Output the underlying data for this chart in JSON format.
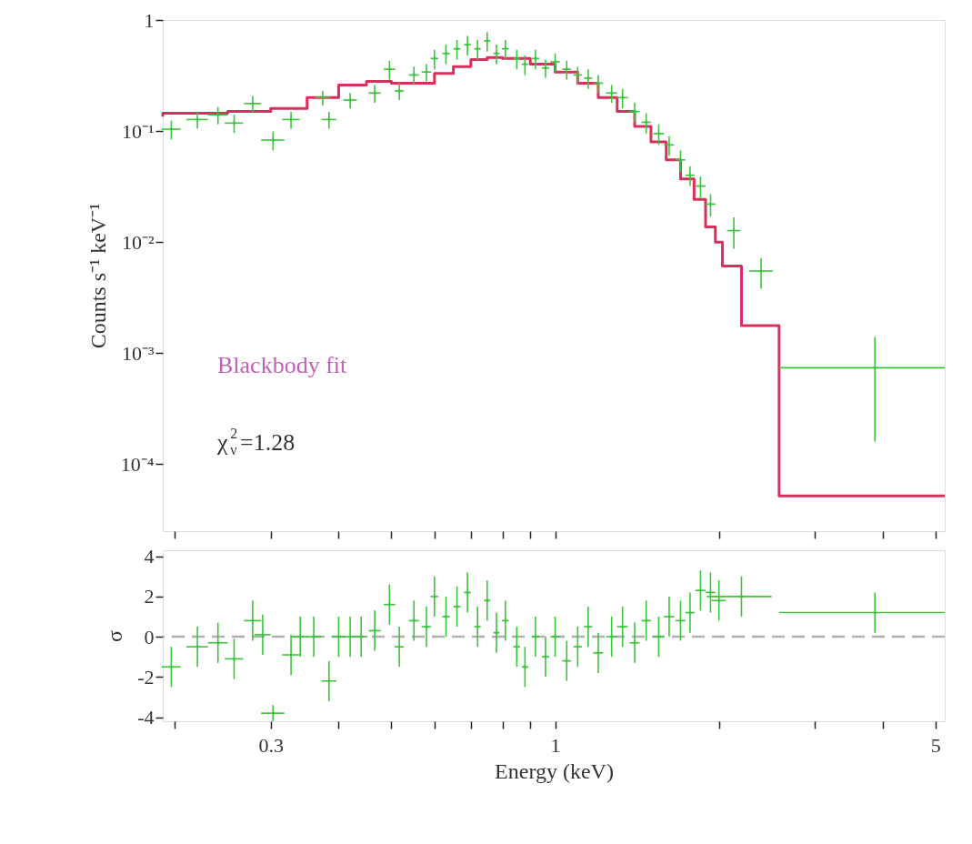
{
  "chart_data": [
    {
      "type": "scatter",
      "ylabel": "Counts s⁻¹ keV⁻¹",
      "log": "xy",
      "xlim": [
        0.19,
        5.2
      ],
      "ylim": [
        2.5e-05,
        1
      ],
      "xticks": [
        {
          "value": 0.2,
          "label": null
        },
        {
          "value": 0.3,
          "label": null
        },
        {
          "value": 0.4,
          "label": null
        },
        {
          "value": 0.5,
          "label": null
        },
        {
          "value": 0.6,
          "label": null
        },
        {
          "value": 0.7,
          "label": null
        },
        {
          "value": 0.8,
          "label": null
        },
        {
          "value": 0.9,
          "label": null
        },
        {
          "value": 1,
          "label": null
        },
        {
          "value": 2,
          "label": null
        },
        {
          "value": 3,
          "label": null
        },
        {
          "value": 4,
          "label": null
        },
        {
          "value": 5,
          "label": null
        }
      ],
      "yticks": [
        1,
        {
          "value": 0.1,
          "label": "10⁻¹"
        },
        {
          "value": 0.01,
          "label": "10⁻²"
        },
        {
          "value": 0.001,
          "label": "10⁻³"
        },
        {
          "value": 0.0001,
          "label": "10⁻⁴"
        }
      ],
      "tick_labels": "y",
      "grid": false,
      "annotations": [
        "Blackbody fit",
        "χ$_{ν}$$^{2}$=1.28"
      ],
      "series": [
        {
          "color": "#3cc43c",
          "marker": "cross",
          "x": [
            0.197,
            0.22,
            0.24,
            0.257,
            0.278,
            0.303,
            0.327,
            0.374,
            0.384,
            0.42,
            0.466,
            0.496,
            0.517,
            0.55,
            0.58,
            0.6,
            0.63,
            0.66,
            0.69,
            0.72,
            0.75,
            0.78,
            0.81,
            0.85,
            0.88,
            0.92,
            0.96,
            1.0,
            1.05,
            1.1,
            1.15,
            1.2,
            1.27,
            1.33,
            1.4,
            1.47,
            1.55,
            1.62,
            1.7,
            1.77,
            1.85,
            1.93,
            2.13,
            2.39,
            3.87
          ],
          "values": [
            0.104,
            0.127,
            0.14,
            0.118,
            0.177,
            0.083,
            0.127,
            0.2,
            0.127,
            0.19,
            0.22,
            0.36,
            0.23,
            0.32,
            0.34,
            0.45,
            0.5,
            0.55,
            0.6,
            0.55,
            0.65,
            0.5,
            0.55,
            0.45,
            0.4,
            0.45,
            0.37,
            0.42,
            0.36,
            0.32,
            0.3,
            0.27,
            0.22,
            0.2,
            0.15,
            0.12,
            0.095,
            0.075,
            0.055,
            0.04,
            0.032,
            0.022,
            0.0127,
            0.0055,
            0.00074
          ],
          "errors": [
            0.02,
            0.022,
            0.025,
            0.022,
            0.03,
            0.016,
            0.022,
            0.03,
            0.022,
            0.03,
            0.04,
            0.07,
            0.04,
            0.06,
            0.06,
            0.09,
            0.1,
            0.11,
            0.12,
            0.11,
            0.13,
            0.1,
            0.11,
            0.09,
            0.08,
            0.09,
            0.07,
            0.08,
            0.07,
            0.06,
            0.06,
            0.05,
            0.04,
            0.04,
            0.03,
            0.025,
            0.02,
            0.015,
            0.012,
            0.008,
            0.007,
            0.005,
            0.004,
            0.0017,
            [
              0.00016,
              0.0014
            ]
          ],
          "xerrors": [
            0.008,
            0.01,
            0.01,
            0.01,
            0.01,
            0.015,
            0.012,
            0.012,
            0.012,
            0.012,
            0.012,
            0.012,
            0.01,
            0.012,
            0.012,
            0.01,
            0.01,
            0.01,
            0.01,
            0.01,
            0.01,
            0.01,
            0.012,
            0.012,
            0.012,
            0.015,
            0.015,
            0.02,
            0.02,
            0.02,
            0.02,
            0.025,
            0.03,
            0.03,
            0.03,
            0.03,
            0.035,
            0.035,
            0.035,
            0.035,
            0.04,
            0.04,
            0.06,
            0.12,
            [
              2.58,
              5.2
            ]
          ]
        },
        {
          "type": "step",
          "color": "#d8305c",
          "x": [
            0.19,
            0.25,
            0.3,
            0.35,
            0.4,
            0.45,
            0.5,
            0.55,
            0.6,
            0.65,
            0.7,
            0.75,
            0.8,
            0.9,
            1.0,
            1.1,
            1.2,
            1.3,
            1.4,
            1.5,
            1.6,
            1.7,
            1.8,
            1.89,
            1.97,
            2.03,
            2.2,
            2.58,
            5.2
          ],
          "values": [
            0.135,
            0.145,
            0.15,
            0.16,
            0.2,
            0.26,
            0.28,
            0.27,
            0.27,
            0.33,
            0.38,
            0.44,
            0.46,
            0.45,
            0.4,
            0.34,
            0.27,
            0.2,
            0.15,
            0.11,
            0.08,
            0.055,
            0.037,
            0.0242,
            0.0137,
            0.01,
            0.0061,
            0.00177,
            5.2e-05
          ]
        }
      ]
    },
    {
      "type": "scatter",
      "xlabel": "Energy (keV)",
      "ylabel": "σ",
      "log": "x",
      "xlim": [
        0.19,
        5.2
      ],
      "ylim": [
        -4.2,
        4.3
      ],
      "xticks": [
        {
          "value": 0.2,
          "label": null
        },
        0.3,
        {
          "value": 0.4,
          "label": null
        },
        {
          "value": 0.5,
          "label": null
        },
        {
          "value": 0.6,
          "label": null
        },
        {
          "value": 0.7,
          "label": null
        },
        {
          "value": 0.8,
          "label": null
        },
        {
          "value": 0.9,
          "label": null
        },
        1,
        {
          "value": 2,
          "label": null
        },
        {
          "value": 3,
          "label": null
        },
        {
          "value": 4,
          "label": null
        },
        5
      ],
      "yticks": [
        -4,
        -2,
        0,
        2,
        4
      ],
      "grid": false,
      "ref_lines": [
        {
          "axis": "y",
          "value": 0,
          "color": "#b0b0b0",
          "line_style": "dashed"
        }
      ],
      "series": [
        {
          "color": "#3cc43c",
          "marker": "cross",
          "x": [
            0.197,
            0.22,
            0.24,
            0.257,
            0.278,
            0.29,
            0.303,
            0.327,
            0.34,
            0.36,
            0.384,
            0.4,
            0.42,
            0.44,
            0.466,
            0.496,
            0.517,
            0.55,
            0.58,
            0.6,
            0.63,
            0.66,
            0.69,
            0.72,
            0.75,
            0.78,
            0.81,
            0.85,
            0.88,
            0.92,
            0.96,
            1.0,
            1.05,
            1.1,
            1.15,
            1.2,
            1.27,
            1.33,
            1.4,
            1.47,
            1.55,
            1.62,
            1.7,
            1.77,
            1.85,
            1.93,
            2.0,
            2.2,
            3.87
          ],
          "values": [
            -1.5,
            -0.5,
            -0.3,
            -1.1,
            0.8,
            0.1,
            -3.8,
            -0.9,
            0,
            0,
            -2.2,
            0,
            0,
            0,
            0.3,
            1.6,
            -0.5,
            0.8,
            0.5,
            2,
            1,
            1.5,
            2.2,
            0.5,
            1.8,
            0.2,
            0.8,
            -0.5,
            -1.5,
            0,
            -1,
            0,
            -1.2,
            -0.5,
            0.5,
            -0.8,
            0,
            0.5,
            -0.3,
            0.8,
            0,
            1,
            0.8,
            1.2,
            2.3,
            2.2,
            1.8,
            2.0,
            1.2
          ],
          "errors": [
            1,
            1,
            1,
            1,
            1,
            1,
            0.4,
            1,
            1,
            1,
            1,
            1,
            1,
            1,
            1,
            1,
            1,
            1,
            1,
            1,
            1,
            1,
            1,
            1,
            1,
            1,
            1,
            1,
            1,
            1,
            1,
            1,
            1,
            1,
            1,
            1,
            1,
            1,
            1,
            1,
            1,
            1,
            1,
            1,
            1,
            1,
            1,
            1,
            1
          ],
          "xerrors": [
            0.008,
            0.01,
            0.01,
            0.01,
            0.01,
            0.01,
            0.015,
            0.012,
            0.012,
            0.012,
            0.012,
            0.012,
            0.012,
            0.012,
            0.012,
            0.012,
            0.01,
            0.012,
            0.012,
            0.01,
            0.01,
            0.01,
            0.01,
            0.01,
            0.01,
            0.01,
            0.012,
            0.012,
            0.012,
            0.015,
            0.015,
            0.02,
            0.02,
            0.02,
            0.02,
            0.025,
            0.03,
            0.03,
            0.03,
            0.03,
            0.035,
            0.035,
            0.035,
            0.035,
            0.04,
            0.04,
            0.06,
            [
              1.9,
              2.5
            ],
            [
              2.58,
              5.2
            ]
          ]
        }
      ]
    }
  ]
}
